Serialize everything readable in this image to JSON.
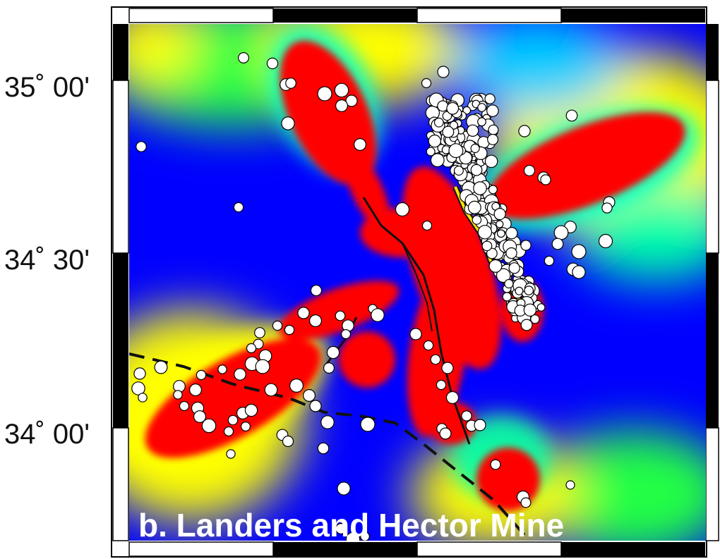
{
  "map": {
    "title": "b. Landers and Hector Mine",
    "lat_labels": [
      "35˚ 00'",
      "34˚ 30'",
      "34˚ 00'"
    ],
    "colors": {
      "high": "#ff0000",
      "upper": "#ffff00",
      "mid": "#00ff40",
      "lower": "#00ffff",
      "low": "#0000ff",
      "events": "#ffffff",
      "rupture_highlight": "#ffe600",
      "faults": "#111111"
    },
    "layers": [
      "stress-change-field",
      "aftershock-events",
      "fault-traces",
      "rupture-trace"
    ]
  }
}
